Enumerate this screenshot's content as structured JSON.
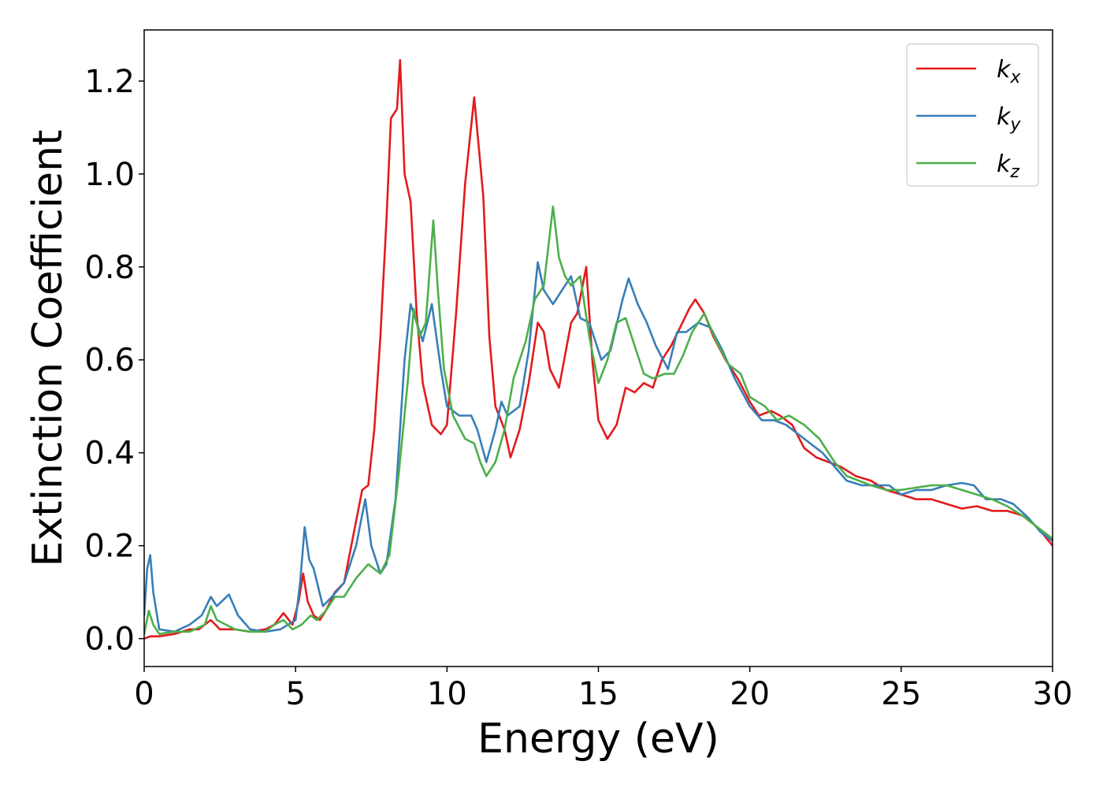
{
  "chart_data": {
    "type": "line",
    "xlabel": "Energy (eV)",
    "ylabel": "Extinction Coefficient",
    "xlim": [
      0,
      30
    ],
    "ylim": [
      -0.06,
      1.31
    ],
    "xticks": [
      "0",
      "5",
      "10",
      "15",
      "20",
      "25",
      "30"
    ],
    "yticks": [
      "0.0",
      "0.2",
      "0.4",
      "0.6",
      "0.8",
      "1.0",
      "1.2"
    ],
    "grid": false,
    "legend_position": "top-right",
    "series": [
      {
        "name": "k",
        "subscript": "x",
        "color": "#e41a1c",
        "points": [
          [
            0,
            0.0
          ],
          [
            0.2,
            0.005
          ],
          [
            0.5,
            0.005
          ],
          [
            1.0,
            0.01
          ],
          [
            1.5,
            0.02
          ],
          [
            1.8,
            0.02
          ],
          [
            2.2,
            0.04
          ],
          [
            2.5,
            0.02
          ],
          [
            3.0,
            0.02
          ],
          [
            3.5,
            0.015
          ],
          [
            4.0,
            0.02
          ],
          [
            4.3,
            0.03
          ],
          [
            4.6,
            0.055
          ],
          [
            4.9,
            0.03
          ],
          [
            5.1,
            0.08
          ],
          [
            5.25,
            0.14
          ],
          [
            5.4,
            0.08
          ],
          [
            5.6,
            0.05
          ],
          [
            5.8,
            0.04
          ],
          [
            6.0,
            0.06
          ],
          [
            6.3,
            0.1
          ],
          [
            6.6,
            0.12
          ],
          [
            6.9,
            0.22
          ],
          [
            7.2,
            0.32
          ],
          [
            7.4,
            0.33
          ],
          [
            7.6,
            0.45
          ],
          [
            7.8,
            0.65
          ],
          [
            8.0,
            0.9
          ],
          [
            8.15,
            1.12
          ],
          [
            8.25,
            1.13
          ],
          [
            8.35,
            1.14
          ],
          [
            8.45,
            1.245
          ],
          [
            8.6,
            1.0
          ],
          [
            8.8,
            0.94
          ],
          [
            9.0,
            0.7
          ],
          [
            9.2,
            0.55
          ],
          [
            9.5,
            0.46
          ],
          [
            9.8,
            0.44
          ],
          [
            10.0,
            0.46
          ],
          [
            10.3,
            0.7
          ],
          [
            10.6,
            0.98
          ],
          [
            10.9,
            1.165
          ],
          [
            11.2,
            0.95
          ],
          [
            11.4,
            0.65
          ],
          [
            11.6,
            0.5
          ],
          [
            11.9,
            0.45
          ],
          [
            12.1,
            0.39
          ],
          [
            12.4,
            0.45
          ],
          [
            12.7,
            0.55
          ],
          [
            13.0,
            0.68
          ],
          [
            13.2,
            0.66
          ],
          [
            13.4,
            0.58
          ],
          [
            13.7,
            0.54
          ],
          [
            13.9,
            0.61
          ],
          [
            14.1,
            0.68
          ],
          [
            14.3,
            0.7
          ],
          [
            14.6,
            0.8
          ],
          [
            14.8,
            0.6
          ],
          [
            15.0,
            0.47
          ],
          [
            15.3,
            0.43
          ],
          [
            15.6,
            0.46
          ],
          [
            15.9,
            0.54
          ],
          [
            16.2,
            0.53
          ],
          [
            16.5,
            0.55
          ],
          [
            16.8,
            0.54
          ],
          [
            17.1,
            0.6
          ],
          [
            17.4,
            0.63
          ],
          [
            17.7,
            0.67
          ],
          [
            18.0,
            0.71
          ],
          [
            18.2,
            0.73
          ],
          [
            18.5,
            0.7
          ],
          [
            18.8,
            0.65
          ],
          [
            19.2,
            0.6
          ],
          [
            19.6,
            0.56
          ],
          [
            20.0,
            0.51
          ],
          [
            20.3,
            0.48
          ],
          [
            20.7,
            0.49
          ],
          [
            21.0,
            0.48
          ],
          [
            21.4,
            0.46
          ],
          [
            21.8,
            0.41
          ],
          [
            22.2,
            0.39
          ],
          [
            22.6,
            0.38
          ],
          [
            23.0,
            0.37
          ],
          [
            23.5,
            0.35
          ],
          [
            24.0,
            0.34
          ],
          [
            24.5,
            0.32
          ],
          [
            25.0,
            0.31
          ],
          [
            25.5,
            0.3
          ],
          [
            26.0,
            0.3
          ],
          [
            26.5,
            0.29
          ],
          [
            27.0,
            0.28
          ],
          [
            27.5,
            0.285
          ],
          [
            28.0,
            0.275
          ],
          [
            28.5,
            0.275
          ],
          [
            29.0,
            0.265
          ],
          [
            29.5,
            0.24
          ],
          [
            30.0,
            0.2
          ]
        ]
      },
      {
        "name": "k",
        "subscript": "y",
        "color": "#377eb8",
        "points": [
          [
            0,
            0.05
          ],
          [
            0.1,
            0.15
          ],
          [
            0.2,
            0.18
          ],
          [
            0.3,
            0.1
          ],
          [
            0.5,
            0.02
          ],
          [
            1.0,
            0.015
          ],
          [
            1.5,
            0.03
          ],
          [
            1.9,
            0.05
          ],
          [
            2.2,
            0.09
          ],
          [
            2.4,
            0.07
          ],
          [
            2.8,
            0.095
          ],
          [
            3.1,
            0.05
          ],
          [
            3.5,
            0.02
          ],
          [
            4.0,
            0.015
          ],
          [
            4.5,
            0.02
          ],
          [
            5.0,
            0.04
          ],
          [
            5.15,
            0.12
          ],
          [
            5.3,
            0.24
          ],
          [
            5.45,
            0.17
          ],
          [
            5.6,
            0.15
          ],
          [
            5.9,
            0.07
          ],
          [
            6.2,
            0.09
          ],
          [
            6.6,
            0.12
          ],
          [
            7.0,
            0.2
          ],
          [
            7.3,
            0.3
          ],
          [
            7.5,
            0.2
          ],
          [
            7.8,
            0.14
          ],
          [
            8.0,
            0.16
          ],
          [
            8.3,
            0.3
          ],
          [
            8.6,
            0.6
          ],
          [
            8.8,
            0.72
          ],
          [
            9.0,
            0.68
          ],
          [
            9.2,
            0.64
          ],
          [
            9.5,
            0.72
          ],
          [
            9.8,
            0.58
          ],
          [
            10.0,
            0.5
          ],
          [
            10.4,
            0.48
          ],
          [
            10.8,
            0.48
          ],
          [
            11.0,
            0.45
          ],
          [
            11.3,
            0.38
          ],
          [
            11.6,
            0.45
          ],
          [
            11.8,
            0.51
          ],
          [
            12.0,
            0.48
          ],
          [
            12.4,
            0.5
          ],
          [
            12.7,
            0.62
          ],
          [
            13.0,
            0.81
          ],
          [
            13.2,
            0.75
          ],
          [
            13.5,
            0.72
          ],
          [
            13.9,
            0.76
          ],
          [
            14.1,
            0.78
          ],
          [
            14.4,
            0.69
          ],
          [
            14.7,
            0.68
          ],
          [
            15.1,
            0.6
          ],
          [
            15.4,
            0.62
          ],
          [
            15.8,
            0.73
          ],
          [
            16.0,
            0.775
          ],
          [
            16.3,
            0.72
          ],
          [
            16.6,
            0.68
          ],
          [
            16.9,
            0.63
          ],
          [
            17.3,
            0.58
          ],
          [
            17.6,
            0.66
          ],
          [
            17.9,
            0.66
          ],
          [
            18.3,
            0.68
          ],
          [
            18.7,
            0.67
          ],
          [
            19.1,
            0.62
          ],
          [
            19.5,
            0.56
          ],
          [
            20.0,
            0.5
          ],
          [
            20.4,
            0.47
          ],
          [
            20.8,
            0.47
          ],
          [
            21.2,
            0.46
          ],
          [
            21.6,
            0.44
          ],
          [
            22.0,
            0.42
          ],
          [
            22.4,
            0.4
          ],
          [
            22.8,
            0.37
          ],
          [
            23.2,
            0.34
          ],
          [
            23.7,
            0.33
          ],
          [
            24.2,
            0.33
          ],
          [
            24.6,
            0.33
          ],
          [
            25.0,
            0.31
          ],
          [
            25.5,
            0.32
          ],
          [
            26.0,
            0.32
          ],
          [
            26.5,
            0.33
          ],
          [
            27.0,
            0.335
          ],
          [
            27.4,
            0.33
          ],
          [
            27.8,
            0.3
          ],
          [
            28.3,
            0.3
          ],
          [
            28.7,
            0.29
          ],
          [
            29.2,
            0.26
          ],
          [
            29.6,
            0.23
          ],
          [
            30.0,
            0.21
          ]
        ]
      },
      {
        "name": "k",
        "subscript": "z",
        "color": "#4daf4a",
        "points": [
          [
            0,
            0.01
          ],
          [
            0.15,
            0.06
          ],
          [
            0.3,
            0.03
          ],
          [
            0.5,
            0.01
          ],
          [
            1.0,
            0.015
          ],
          [
            1.5,
            0.015
          ],
          [
            2.0,
            0.03
          ],
          [
            2.2,
            0.07
          ],
          [
            2.4,
            0.04
          ],
          [
            2.7,
            0.03
          ],
          [
            3.0,
            0.02
          ],
          [
            3.5,
            0.015
          ],
          [
            4.0,
            0.015
          ],
          [
            4.3,
            0.03
          ],
          [
            4.6,
            0.04
          ],
          [
            4.9,
            0.02
          ],
          [
            5.2,
            0.03
          ],
          [
            5.5,
            0.05
          ],
          [
            5.7,
            0.04
          ],
          [
            6.0,
            0.06
          ],
          [
            6.3,
            0.09
          ],
          [
            6.6,
            0.09
          ],
          [
            7.0,
            0.13
          ],
          [
            7.4,
            0.16
          ],
          [
            7.8,
            0.14
          ],
          [
            8.1,
            0.18
          ],
          [
            8.4,
            0.35
          ],
          [
            8.7,
            0.55
          ],
          [
            8.9,
            0.71
          ],
          [
            9.1,
            0.65
          ],
          [
            9.3,
            0.68
          ],
          [
            9.55,
            0.9
          ],
          [
            9.7,
            0.75
          ],
          [
            9.9,
            0.58
          ],
          [
            10.2,
            0.48
          ],
          [
            10.6,
            0.43
          ],
          [
            10.9,
            0.42
          ],
          [
            11.1,
            0.38
          ],
          [
            11.3,
            0.35
          ],
          [
            11.6,
            0.38
          ],
          [
            11.9,
            0.45
          ],
          [
            12.2,
            0.56
          ],
          [
            12.6,
            0.64
          ],
          [
            12.9,
            0.73
          ],
          [
            13.2,
            0.76
          ],
          [
            13.5,
            0.93
          ],
          [
            13.7,
            0.82
          ],
          [
            13.9,
            0.78
          ],
          [
            14.1,
            0.76
          ],
          [
            14.4,
            0.78
          ],
          [
            14.7,
            0.65
          ],
          [
            15.0,
            0.55
          ],
          [
            15.3,
            0.6
          ],
          [
            15.6,
            0.68
          ],
          [
            15.9,
            0.69
          ],
          [
            16.2,
            0.63
          ],
          [
            16.5,
            0.57
          ],
          [
            16.8,
            0.56
          ],
          [
            17.2,
            0.57
          ],
          [
            17.5,
            0.57
          ],
          [
            17.8,
            0.61
          ],
          [
            18.1,
            0.66
          ],
          [
            18.5,
            0.7
          ],
          [
            18.9,
            0.64
          ],
          [
            19.3,
            0.59
          ],
          [
            19.7,
            0.57
          ],
          [
            20.0,
            0.52
          ],
          [
            20.5,
            0.5
          ],
          [
            20.9,
            0.47
          ],
          [
            21.3,
            0.48
          ],
          [
            21.8,
            0.46
          ],
          [
            22.3,
            0.43
          ],
          [
            22.8,
            0.38
          ],
          [
            23.2,
            0.35
          ],
          [
            23.6,
            0.34
          ],
          [
            24.0,
            0.33
          ],
          [
            24.5,
            0.32
          ],
          [
            25.0,
            0.32
          ],
          [
            25.5,
            0.325
          ],
          [
            26.0,
            0.33
          ],
          [
            26.5,
            0.33
          ],
          [
            27.0,
            0.32
          ],
          [
            27.5,
            0.31
          ],
          [
            28.0,
            0.3
          ],
          [
            28.5,
            0.285
          ],
          [
            29.0,
            0.265
          ],
          [
            29.5,
            0.24
          ],
          [
            30.0,
            0.215
          ]
        ]
      }
    ]
  }
}
